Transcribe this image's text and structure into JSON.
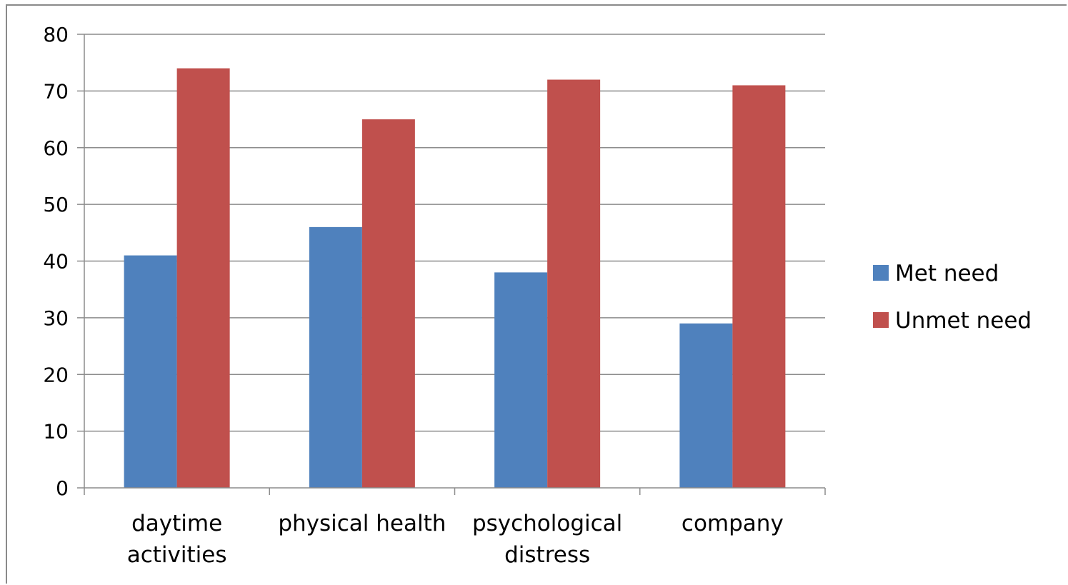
{
  "chart_data": {
    "type": "bar",
    "categories": [
      [
        "daytime",
        "activities"
      ],
      [
        "physical health"
      ],
      [
        "psychological",
        "distress"
      ],
      [
        "company"
      ]
    ],
    "series": [
      {
        "name": "Met need",
        "color": "#4F81BD",
        "values": [
          41,
          46,
          38,
          29
        ]
      },
      {
        "name": "Unmet need",
        "color": "#C0504D",
        "values": [
          74,
          65,
          72,
          71
        ]
      }
    ],
    "ylim": [
      0,
      80
    ],
    "yticks": [
      0,
      10,
      20,
      30,
      40,
      50,
      60,
      70,
      80
    ],
    "grid": true,
    "legend_position": "right"
  }
}
